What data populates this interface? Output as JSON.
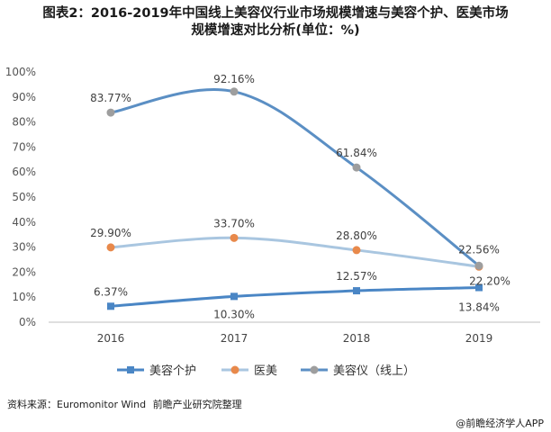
{
  "title": {
    "line1": "图表2：2016-2019年中国线上美容仪行业市场规模增速与美容个护、医美市场",
    "line2": "规模增速对比分析(单位：%)"
  },
  "source": {
    "label": "资料来源：Euromonitor Wind",
    "org": "前瞻产业研究院整理"
  },
  "credit": "@前瞻经济学人APP",
  "chart_data": {
    "type": "line",
    "x": [
      "2016",
      "2017",
      "2018",
      "2019"
    ],
    "ylim": [
      0,
      100
    ],
    "yticks": [
      "0%",
      "10%",
      "20%",
      "30%",
      "40%",
      "50%",
      "60%",
      "70%",
      "80%",
      "90%",
      "100%"
    ],
    "grid": false,
    "legend_position": "bottom",
    "series": [
      {
        "name": "美容个护",
        "values": [
          6.37,
          10.3,
          12.57,
          13.84
        ],
        "labels": [
          "6.37%",
          "10.30%",
          "12.57%",
          "13.84%"
        ],
        "color": "#4a86c5",
        "marker": "square"
      },
      {
        "name": "医美",
        "values": [
          29.9,
          33.7,
          28.8,
          22.2
        ],
        "labels": [
          "29.90%",
          "33.70%",
          "28.80%",
          "22.20%"
        ],
        "color": "#a9c6e0",
        "marker": "circle",
        "marker_color": "#e8894b"
      },
      {
        "name": "美容仪（线上）",
        "values": [
          83.77,
          92.16,
          61.84,
          22.56
        ],
        "labels": [
          "83.77%",
          "92.16%",
          "61.84%",
          "22.56%"
        ],
        "color": "#5b8fc4",
        "marker": "circle",
        "marker_color": "#9e9e9e"
      }
    ]
  }
}
